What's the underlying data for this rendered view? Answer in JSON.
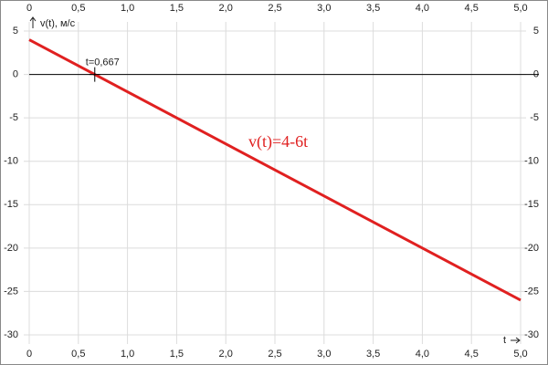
{
  "chart_data": {
    "type": "line",
    "x": [
      0,
      5
    ],
    "series": [
      {
        "name": "v(t)=4-6t",
        "color": "#e02020",
        "values": [
          4,
          -26
        ]
      }
    ],
    "xlim": [
      0,
      5
    ],
    "xticks": [
      0,
      {
        "value": 0.5,
        "label": "0,5"
      },
      {
        "value": 1,
        "label": "1,0"
      },
      {
        "value": 1.5,
        "label": "1,5"
      },
      {
        "value": 2,
        "label": "2,0"
      },
      {
        "value": 2.5,
        "label": "2,5"
      },
      {
        "value": 3,
        "label": "3,0"
      },
      {
        "value": 3.5,
        "label": "3,5"
      },
      {
        "value": 4,
        "label": "4,0"
      },
      {
        "value": 4.5,
        "label": "4,5"
      },
      {
        "value": 5,
        "label": "5,0"
      }
    ],
    "ylim": [
      -30,
      5
    ],
    "yticks": [
      5,
      0,
      -5,
      -10,
      -15,
      -20,
      -25,
      -30
    ],
    "ylabel": "v(t), м/с",
    "xlabel": "t",
    "grid": true,
    "annotations": [
      {
        "text": "t=0,667",
        "x": 0.667,
        "y": 0
      }
    ]
  }
}
